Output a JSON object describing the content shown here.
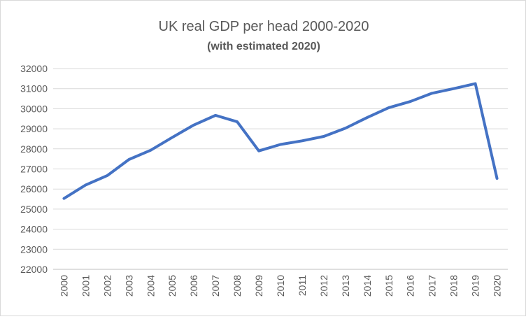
{
  "chart_data": {
    "type": "line",
    "title": "UK real GDP per head 2000-2020",
    "subtitle": "(with estimated 2020)",
    "xlabel": "",
    "ylabel": "",
    "ylim": [
      22000,
      32000
    ],
    "yticks": [
      "22000",
      "23000",
      "24000",
      "25000",
      "26000",
      "27000",
      "28000",
      "29000",
      "30000",
      "31000",
      "32000"
    ],
    "categories": [
      "2000",
      "2001",
      "2002",
      "2003",
      "2004",
      "2005",
      "2006",
      "2007",
      "2008",
      "2009",
      "2010",
      "2011",
      "2012",
      "2013",
      "2014",
      "2015",
      "2016",
      "2017",
      "2018",
      "2019",
      "2020"
    ],
    "series": [
      {
        "name": "GDP per head",
        "color": "#4472c4",
        "values": [
          25530,
          26200,
          26670,
          27470,
          27930,
          28570,
          29190,
          29670,
          29350,
          27900,
          28220,
          28400,
          28620,
          29030,
          29560,
          30050,
          30360,
          30770,
          31000,
          31250,
          26530
        ]
      }
    ],
    "grid": true,
    "legend": "none"
  }
}
